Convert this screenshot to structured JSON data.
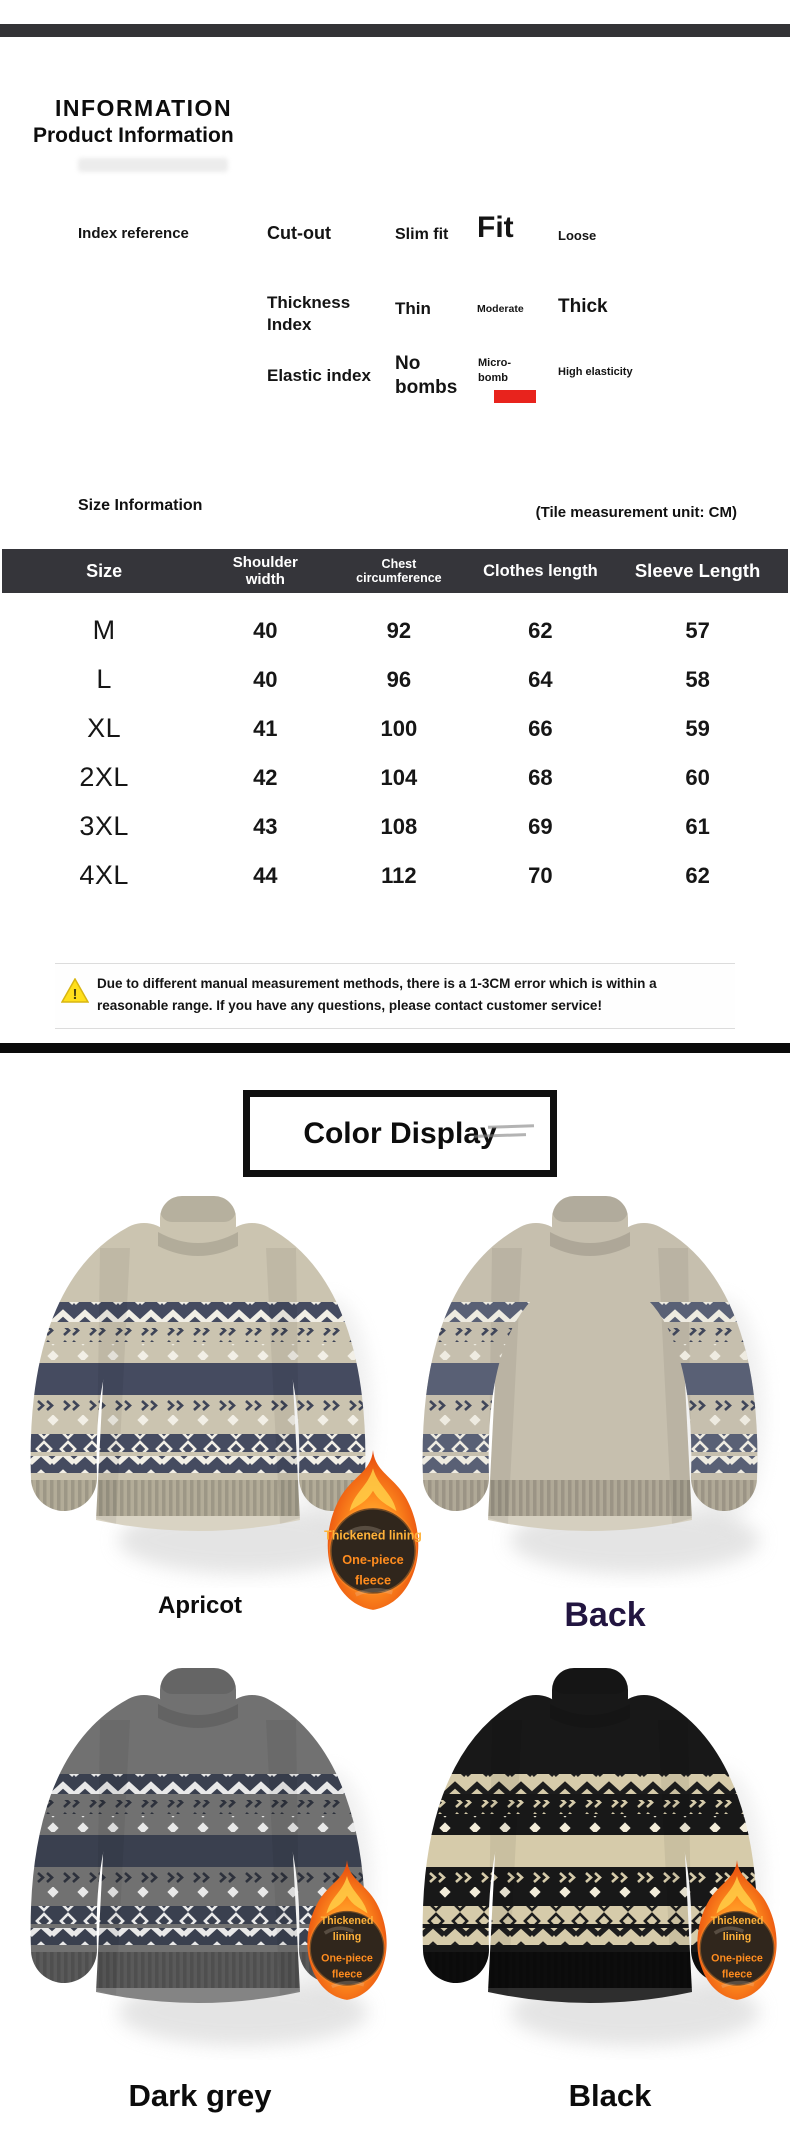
{
  "header": {
    "title": "INFORMATION",
    "subtitle": "Product Information"
  },
  "index_reference": {
    "section_label": "Index reference",
    "rows": [
      {
        "label": "Cut-out",
        "options": [
          "Slim fit",
          "Fit",
          "Loose"
        ],
        "selected": "Fit"
      },
      {
        "label": "Thickness Index",
        "options": [
          "Thin",
          "Moderate",
          "Thick"
        ],
        "selected": "Thick"
      },
      {
        "label": "Elastic index",
        "options": [
          "No bombs",
          "Micro-bomb",
          "High elasticity"
        ],
        "selected": "Micro-bomb",
        "selected_marker": "red-underline"
      }
    ]
  },
  "size_info": {
    "title": "Size Information",
    "unit_note": "(Tile measurement unit: CM)"
  },
  "size_table": {
    "columns": [
      "Size",
      "Shoulder width",
      "Chest circumference",
      "Clothes length",
      "Sleeve Length"
    ],
    "rows": [
      [
        "M",
        "40",
        "92",
        "62",
        "57"
      ],
      [
        "L",
        "40",
        "96",
        "64",
        "58"
      ],
      [
        "XL",
        "41",
        "100",
        "66",
        "59"
      ],
      [
        "2XL",
        "42",
        "104",
        "68",
        "60"
      ],
      [
        "3XL",
        "43",
        "108",
        "69",
        "61"
      ],
      [
        "4XL",
        "44",
        "112",
        "70",
        "62"
      ]
    ]
  },
  "note": {
    "icon": "warning-triangle",
    "line1": "Due to different manual measurement methods, there is a 1-3CM error which is within a",
    "line2": "reasonable range. If you have any questions, please contact customer service!"
  },
  "color_display": {
    "title": "Color Display"
  },
  "badge": {
    "lines_wide": [
      "Thickened lining",
      "One-piece",
      "fleece"
    ],
    "lines_narrow": [
      "Thickened",
      "lining",
      "One-piece",
      "fleece"
    ],
    "text_color_1": "#ffb23a",
    "text_color_2": "#ff8c1e"
  },
  "products": [
    {
      "label": "Apricot",
      "variant": "front",
      "badge": "wide",
      "palette": {
        "body": "#cbc4b0",
        "shade": "#b3ac98",
        "fluff": "#d9d3c3",
        "band": "#454b60",
        "light": "#f2efe6",
        "motif": "#3e4457",
        "bandMotif": "#f2efe6"
      }
    },
    {
      "label": "Back",
      "variant": "back",
      "badge": null,
      "palette": {
        "body": "#c6bfae",
        "shade": "#b0a997",
        "fluff": "#d5cfbf",
        "band": "#596075",
        "light": "#eeebe1",
        "motif": "#40465a",
        "bandMotif": "#eeebe1"
      }
    },
    {
      "label": "Dark grey",
      "variant": "front",
      "badge": "narrow",
      "palette": {
        "body": "#717171",
        "shade": "#5a5a5a",
        "fluff": "#848484",
        "band": "#3a404f",
        "light": "#e9e9e9",
        "motif": "#2d313c",
        "bandMotif": "#e9e9e9"
      }
    },
    {
      "label": "Black",
      "variant": "front",
      "badge": "narrow",
      "palette": {
        "body": "#181818",
        "shade": "#0d0d0d",
        "fluff": "#2e2e2e",
        "band": "#d6cbaa",
        "light": "#f2ecd9",
        "motif": "#d6cbaa",
        "bandMotif": "#1d1d1d"
      }
    }
  ],
  "colors": {
    "topbar": "#333336",
    "table_header_bg": "#35353a",
    "divider": "#0a0a0a",
    "selected_marker": "#e8231d",
    "warning_yellow": "#ffdf1b",
    "back_label": "#221540"
  }
}
